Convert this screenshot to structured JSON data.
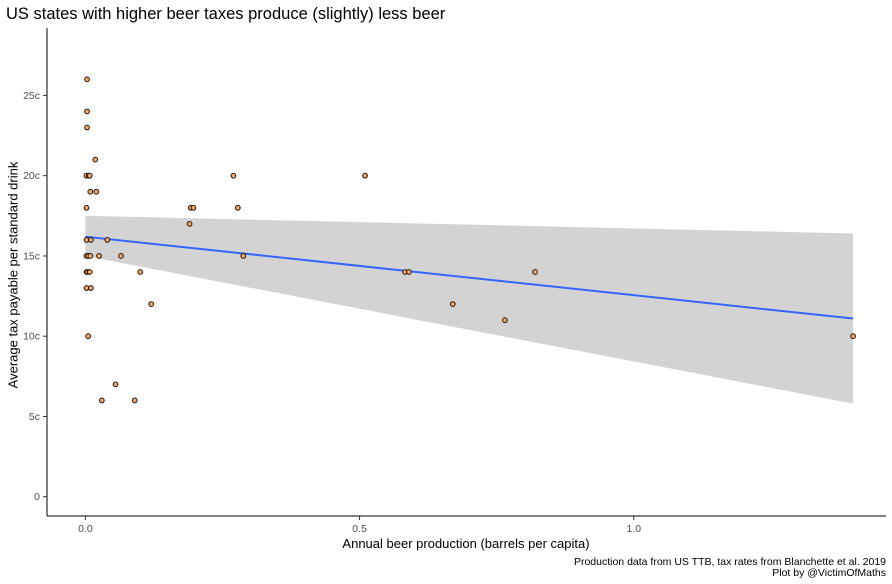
{
  "title": "US states with higher beer taxes produce (slightly) less beer",
  "caption": {
    "line1": "Production data from US TTB, tax rates from Blanchette et al. 2019",
    "line2": "Plot by @VictimOfMaths"
  },
  "colors": {
    "point_fill": "#F4A460",
    "point_stroke": "#1a1a1a",
    "trend_line": "#3366FF",
    "ribbon": "#D3D3D3",
    "axis": "#000000"
  },
  "chart_data": {
    "type": "scatter",
    "title": "US states with higher beer taxes produce (slightly) less beer",
    "xlabel": "Annual beer production (barrels per capita)",
    "ylabel": "Average tax payable per standard drink",
    "xlim": [
      -0.07,
      1.46
    ],
    "ylim": [
      -1.2,
      29.2
    ],
    "x_ticks": [
      0.0,
      0.5,
      1.0
    ],
    "x_tick_labels": [
      "0.0",
      "0.5",
      "1.0"
    ],
    "y_ticks": [
      0,
      5,
      10,
      15,
      20,
      25
    ],
    "y_tick_labels": [
      "0",
      "5c",
      "10c",
      "15c",
      "20c",
      "25c"
    ],
    "grid": false,
    "points": [
      {
        "x": 0.003,
        "y": 26
      },
      {
        "x": 0.003,
        "y": 24
      },
      {
        "x": 0.003,
        "y": 23
      },
      {
        "x": 0.002,
        "y": 20
      },
      {
        "x": 0.006,
        "y": 20
      },
      {
        "x": 0.008,
        "y": 20
      },
      {
        "x": 0.018,
        "y": 21
      },
      {
        "x": 0.009,
        "y": 19
      },
      {
        "x": 0.02,
        "y": 19
      },
      {
        "x": 0.002,
        "y": 18
      },
      {
        "x": 0.002,
        "y": 16
      },
      {
        "x": 0.01,
        "y": 16
      },
      {
        "x": 0.04,
        "y": 16
      },
      {
        "x": 0.002,
        "y": 15
      },
      {
        "x": 0.005,
        "y": 15
      },
      {
        "x": 0.009,
        "y": 15
      },
      {
        "x": 0.025,
        "y": 15
      },
      {
        "x": 0.065,
        "y": 15
      },
      {
        "x": 0.002,
        "y": 14
      },
      {
        "x": 0.005,
        "y": 14
      },
      {
        "x": 0.008,
        "y": 14
      },
      {
        "x": 0.002,
        "y": 13
      },
      {
        "x": 0.01,
        "y": 13
      },
      {
        "x": 0.005,
        "y": 10
      },
      {
        "x": 0.03,
        "y": 6
      },
      {
        "x": 0.055,
        "y": 7
      },
      {
        "x": 0.09,
        "y": 6
      },
      {
        "x": 0.1,
        "y": 14
      },
      {
        "x": 0.12,
        "y": 12
      },
      {
        "x": 0.19,
        "y": 17
      },
      {
        "x": 0.192,
        "y": 18
      },
      {
        "x": 0.197,
        "y": 18
      },
      {
        "x": 0.27,
        "y": 20
      },
      {
        "x": 0.278,
        "y": 18
      },
      {
        "x": 0.288,
        "y": 15
      },
      {
        "x": 0.51,
        "y": 20
      },
      {
        "x": 0.583,
        "y": 14
      },
      {
        "x": 0.59,
        "y": 14
      },
      {
        "x": 0.67,
        "y": 12
      },
      {
        "x": 0.765,
        "y": 11
      },
      {
        "x": 0.82,
        "y": 14
      },
      {
        "x": 1.4,
        "y": 10
      }
    ],
    "trend": {
      "method": "linear",
      "x": [
        0.0,
        1.4
      ],
      "y": [
        16.2,
        11.1
      ],
      "ci_upper": [
        17.5,
        16.4
      ],
      "ci_lower": [
        15.0,
        5.8
      ]
    }
  }
}
